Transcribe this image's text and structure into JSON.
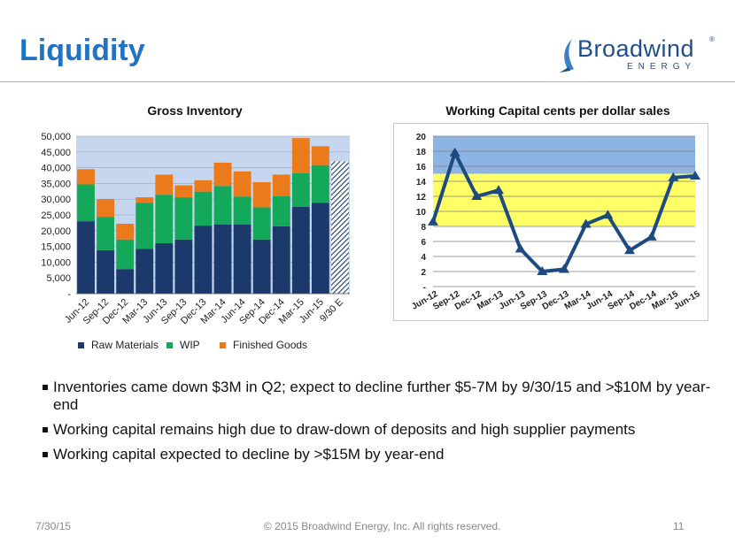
{
  "slide": {
    "title": "Liquidity",
    "logo": {
      "word": "Broadwind",
      "sub": "ENERGY",
      "reg": "®"
    },
    "bullets": [
      "Inventories came down $3M in Q2; expect to decline further $5-7M by 9/30/15 and >$10M by year-end",
      "Working capital remains high due to draw-down of deposits and high supplier payments",
      "Working capital expected to decline by >$15M by year-end"
    ],
    "footer": {
      "date": "7/30/15",
      "copyright": "© 2015 Broadwind Energy, Inc. All rights reserved.",
      "page": "11"
    }
  },
  "colors": {
    "title": "#1f72c4",
    "raw_materials": "#1b3a6b",
    "wip": "#14a85a",
    "finished_goods": "#eb7a1c",
    "inv_plot_bg": "#c6d6ee",
    "wc_line": "#1d4a80",
    "wc_band_blue": "#8db4e2",
    "wc_band_yellow": "#ffff66"
  },
  "chart_data": [
    {
      "type": "bar",
      "stacked": true,
      "title": "Gross Inventory",
      "categories": [
        "Jun-12",
        "Sep-12",
        "Dec-12",
        "Mar-13",
        "Jun-13",
        "Sep-13",
        "Dec-13",
        "Mar-14",
        "Jun-14",
        "Sep-14",
        "Dec-14",
        "Mar-15",
        "Jun-15",
        "9/30 E"
      ],
      "series": [
        {
          "name": "Raw Materials",
          "values": [
            23000,
            13800,
            7800,
            14200,
            16000,
            17200,
            21600,
            22000,
            22000,
            17200,
            21400,
            27600,
            28800,
            null
          ]
        },
        {
          "name": "WIP",
          "values": [
            11700,
            10600,
            9400,
            14600,
            15400,
            13400,
            10800,
            12200,
            8800,
            10200,
            9600,
            10600,
            12000,
            null
          ]
        },
        {
          "name": "Finished Goods",
          "values": [
            4800,
            5600,
            5000,
            1800,
            6400,
            3800,
            3600,
            7400,
            8000,
            8000,
            6800,
            11200,
            6000,
            null
          ]
        }
      ],
      "estimate": {
        "category": "9/30 E",
        "total": 42000,
        "pattern": "hatched"
      },
      "y_ticks": [
        "-",
        "5,000",
        "10,000",
        "15,000",
        "20,000",
        "25,000",
        "30,000",
        "35,000",
        "40,000",
        "45,000",
        "50,000"
      ],
      "ylim": [
        0,
        50000
      ],
      "legend": "bottom"
    },
    {
      "type": "line",
      "title": "Working Capital cents per dollar sales",
      "categories": [
        "Jun-12",
        "Sep-12",
        "Dec-12",
        "Mar-13",
        "Jun-13",
        "Sep-13",
        "Dec-13",
        "Mar-14",
        "Jun-14",
        "Sep-14",
        "Dec-14",
        "Mar-15",
        "Jun-15"
      ],
      "series": [
        {
          "values": [
            8.6,
            17.8,
            12.0,
            12.8,
            5.0,
            2.0,
            2.3,
            8.3,
            9.5,
            4.8,
            6.6,
            14.5,
            14.7
          ]
        }
      ],
      "bands": [
        {
          "from": 15,
          "to": 20,
          "color": "blue"
        },
        {
          "from": 8,
          "to": 15,
          "color": "yellow"
        }
      ],
      "y_ticks": [
        "-",
        "2",
        "4",
        "6",
        "8",
        "10",
        "12",
        "14",
        "16",
        "18",
        "20"
      ],
      "ylim": [
        0,
        20
      ],
      "grid": true
    }
  ]
}
